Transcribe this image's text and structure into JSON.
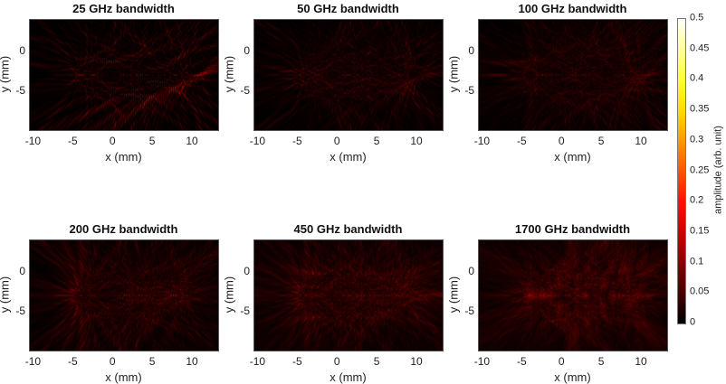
{
  "chart_data": {
    "type": "heatmap",
    "xlabel": "x (mm)",
    "ylabel": "y (mm)",
    "xlim": [
      -10.5,
      13.3
    ],
    "ylim": [
      -10,
      4
    ],
    "xticks": [
      "-10",
      "-5",
      "0",
      "5",
      "10"
    ],
    "xtick_values": [
      -10,
      -5,
      0,
      5,
      10
    ],
    "yticks": [
      "0",
      "-5"
    ],
    "ytick_values": [
      0,
      -5
    ],
    "colormap": "hot",
    "colorbar": {
      "label": "amplitude (arb. unit)",
      "range": [
        0,
        0.5
      ],
      "ticks": [
        "0.5",
        "0.45",
        "0.4",
        "0.35",
        "0.3",
        "0.25",
        "0.2",
        "0.15",
        "0.1",
        "0.05",
        "0"
      ]
    },
    "panels": [
      {
        "title": "25 GHz bandwidth",
        "bandwidth_ghz": 25
      },
      {
        "title": "50 GHz bandwidth",
        "bandwidth_ghz": 50
      },
      {
        "title": "100 GHz bandwidth",
        "bandwidth_ghz": 100
      },
      {
        "title": "200 GHz bandwidth",
        "bandwidth_ghz": 200
      },
      {
        "title": "450 GHz bandwidth",
        "bandwidth_ghz": 450
      },
      {
        "title": "1700 GHz bandwidth",
        "bandwidth_ghz": 1700
      }
    ]
  }
}
